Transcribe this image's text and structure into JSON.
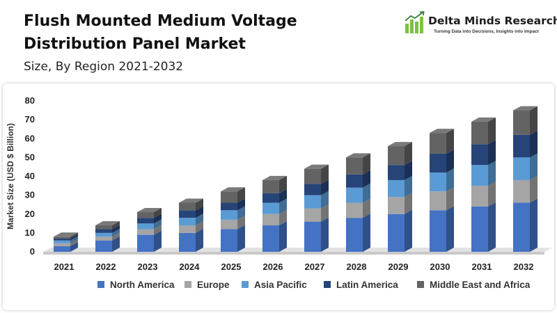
{
  "header": {
    "title": "Flush Mounted Medium Voltage Distribution Panel Market",
    "subtitle": "Size, By Region 2021-2032"
  },
  "logo": {
    "name": "Delta Minds Research",
    "tagline": "Turning Data into Decisions, Insights into Impact",
    "icon": "bar-growth-icon",
    "color": "#7cc242"
  },
  "chart_data": {
    "type": "bar",
    "stacked": true,
    "ylabel": "Market Size (USD $ Billion)",
    "xlabel": "",
    "ylim": [
      0,
      80
    ],
    "yticks": [
      0,
      10,
      20,
      30,
      40,
      50,
      60,
      70,
      80
    ],
    "grid": false,
    "legend_position": "bottom",
    "categories": [
      "2021",
      "2022",
      "2023",
      "2024",
      "2025",
      "2026",
      "2027",
      "2028",
      "2029",
      "2030",
      "2031",
      "2032"
    ],
    "series": [
      {
        "name": "North America",
        "color": "#4472c4",
        "values": [
          3,
          6,
          9,
          10,
          12,
          14,
          16,
          18,
          20,
          22,
          24,
          26
        ]
      },
      {
        "name": "Europe",
        "color": "#a5a5a5",
        "values": [
          1.5,
          2,
          3,
          4,
          5,
          6,
          7,
          8,
          9,
          10,
          11,
          12
        ]
      },
      {
        "name": "Asia Pacific",
        "color": "#5b9bd5",
        "values": [
          1.5,
          2,
          3,
          4,
          5,
          6,
          7,
          8,
          9,
          10,
          11,
          12
        ]
      },
      {
        "name": "Latin America",
        "color": "#264478",
        "values": [
          1,
          2,
          3,
          4,
          4,
          5,
          6,
          7,
          8,
          10,
          11,
          12
        ]
      },
      {
        "name": "Middle East and Africa",
        "color": "#636363",
        "values": [
          1,
          2,
          3,
          4,
          6,
          7,
          8,
          9,
          10,
          11,
          12,
          13
        ]
      }
    ]
  }
}
